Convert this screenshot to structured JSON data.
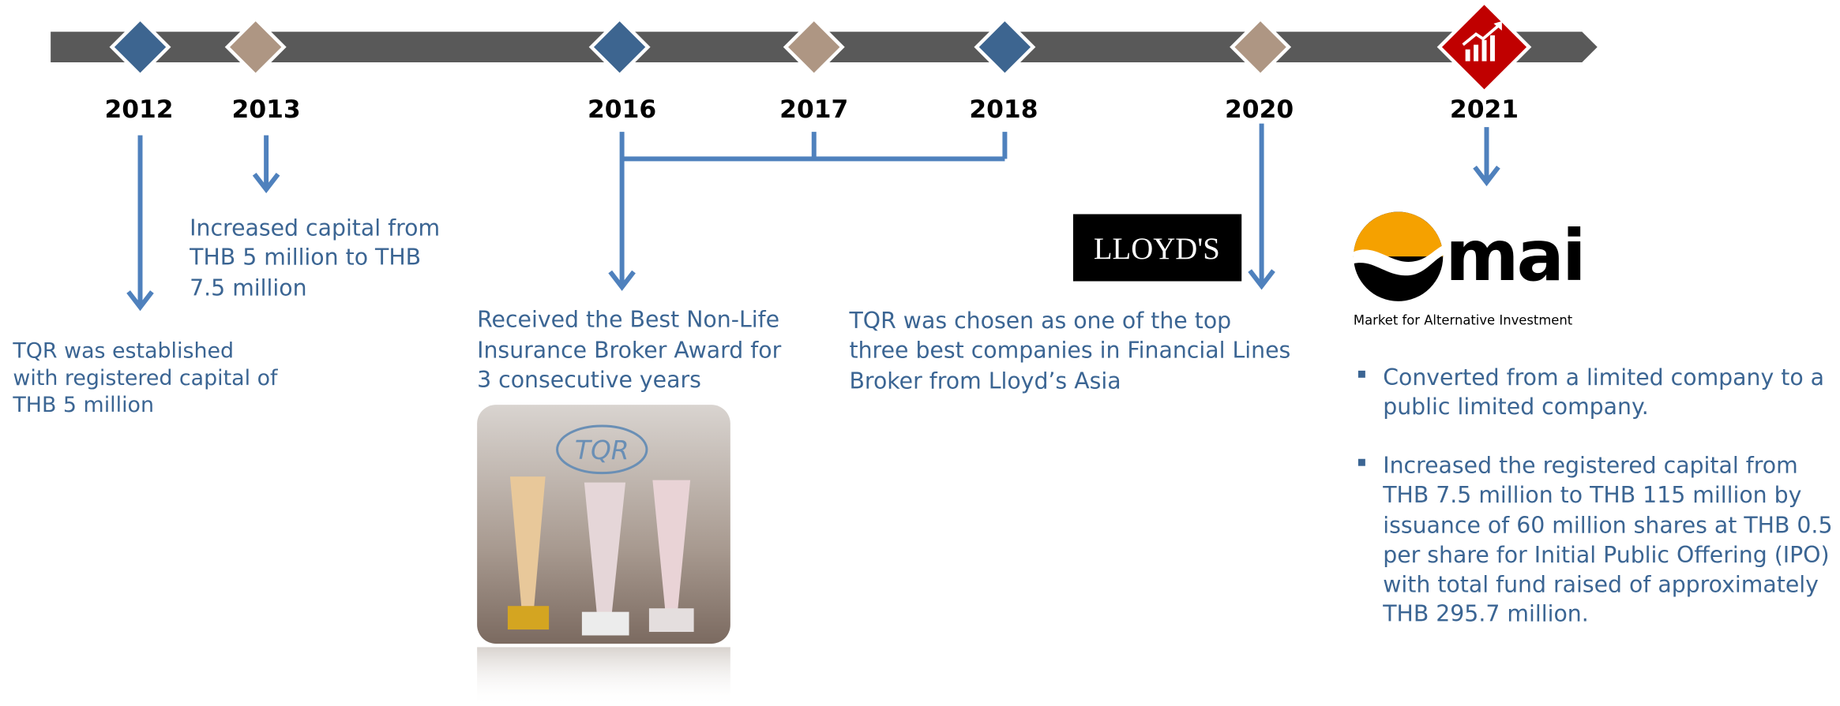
{
  "milestones": [
    {
      "year": "2012",
      "lines": [
        "TQR was established",
        "with registered capital of",
        "THB 5 million"
      ]
    },
    {
      "year": "2013",
      "lines": [
        "Increased capital from",
        "THB 5 million to THB",
        "7.5 million"
      ]
    },
    {
      "year": "2016",
      "lines": [
        "Received the Best Non-Life",
        "Insurance Broker Award for",
        "3 consecutive years"
      ]
    },
    {
      "year": "2017"
    },
    {
      "year": "2018"
    },
    {
      "year": "2020",
      "lines": [
        "TQR was chosen as one of the top",
        "three best companies in Financial Lines",
        "Broker from Lloyd’s Asia"
      ]
    },
    {
      "year": "2021",
      "bullets": [
        [
          "Converted from a limited company to a",
          "public limited company."
        ],
        [
          "Increased the registered capital from",
          "THB 7.5 million to THB 115 million by",
          "issuance of 60 million shares at THB 0.5",
          "per share for Initial Public Offering (IPO)",
          "with total fund raised of approximately",
          "THB 295.7 million."
        ]
      ]
    }
  ],
  "logos": {
    "lloyds": "LLOYD'S",
    "mai": "mai",
    "mai_subtitle": "Market for Alternative Investment",
    "photo_text": "TQR"
  }
}
